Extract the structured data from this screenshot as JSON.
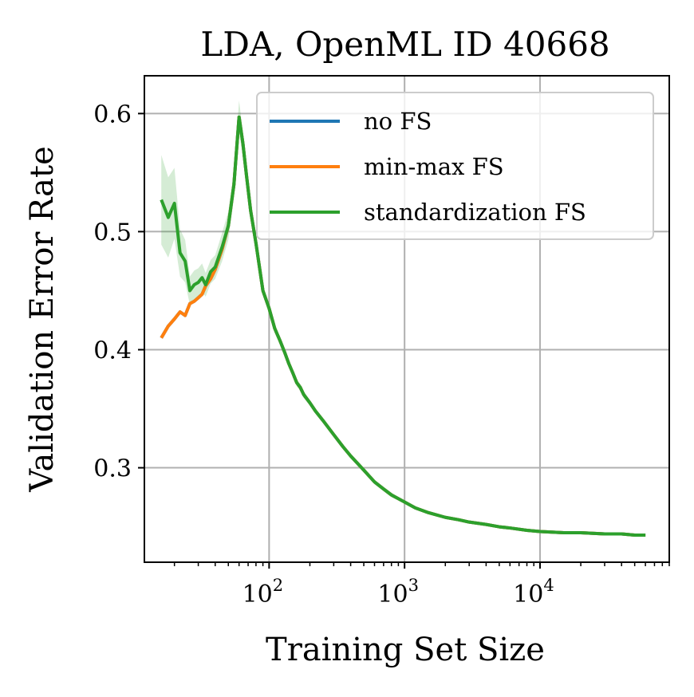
{
  "chart_data": {
    "type": "line",
    "title": "LDA, OpenML ID 40668",
    "xlabel": "Training Set Size",
    "ylabel": "Validation Error Rate",
    "xscale": "log",
    "xlim": [
      12,
      90000
    ],
    "ylim": [
      0.22,
      0.632
    ],
    "grid": true,
    "legend_position": "top-right",
    "xticks": [
      {
        "value": 100,
        "base": "10",
        "exp": "2"
      },
      {
        "value": 1000,
        "base": "10",
        "exp": "3"
      },
      {
        "value": 10000,
        "base": "10",
        "exp": "4"
      }
    ],
    "yticks": [
      {
        "value": 0.3,
        "label": "0.3"
      },
      {
        "value": 0.4,
        "label": "0.4"
      },
      {
        "value": 0.5,
        "label": "0.5"
      },
      {
        "value": 0.6,
        "label": "0.6"
      }
    ],
    "series": [
      {
        "name": "no FS",
        "color": "#1f77b4",
        "x": [
          16,
          18,
          20,
          22,
          24,
          26,
          28,
          30,
          32,
          34,
          37,
          40,
          45,
          50,
          55,
          60,
          64,
          68,
          73,
          80,
          90,
          100,
          110,
          120,
          130,
          140,
          150,
          160,
          170,
          180,
          200,
          220,
          250,
          300,
          350,
          400,
          500,
          600,
          700,
          800,
          1000,
          1200,
          1500,
          2000,
          2500,
          3000,
          4000,
          5000,
          6000,
          8000,
          10000,
          15000,
          20000,
          30000,
          40000,
          50000,
          60000
        ],
        "values": [
          0.41,
          0.42,
          0.426,
          0.432,
          0.429,
          0.439,
          0.441,
          0.444,
          0.447,
          0.454,
          0.46,
          0.468,
          0.485,
          0.505,
          0.54,
          0.597,
          0.575,
          0.548,
          0.518,
          0.49,
          0.45,
          0.435,
          0.418,
          0.408,
          0.398,
          0.388,
          0.38,
          0.372,
          0.368,
          0.362,
          0.355,
          0.348,
          0.34,
          0.328,
          0.318,
          0.31,
          0.298,
          0.288,
          0.282,
          0.277,
          0.271,
          0.266,
          0.262,
          0.258,
          0.256,
          0.254,
          0.252,
          0.25,
          0.249,
          0.247,
          0.246,
          0.245,
          0.245,
          0.244,
          0.244,
          0.243,
          0.243
        ]
      },
      {
        "name": "min-max FS",
        "color": "#ff7f0e",
        "x": [
          16,
          18,
          20,
          22,
          24,
          26,
          28,
          30,
          32,
          34,
          37,
          40,
          45,
          50,
          55,
          60,
          64,
          68,
          73,
          80,
          90,
          100,
          110,
          120,
          130,
          140,
          150,
          160,
          170,
          180,
          200,
          220,
          250,
          300,
          350,
          400,
          500,
          600,
          700,
          800,
          1000,
          1200,
          1500,
          2000,
          2500,
          3000,
          4000,
          5000,
          6000,
          8000,
          10000,
          15000,
          20000,
          30000,
          40000,
          50000,
          60000
        ],
        "values": [
          0.41,
          0.42,
          0.426,
          0.432,
          0.429,
          0.439,
          0.441,
          0.444,
          0.447,
          0.454,
          0.46,
          0.468,
          0.485,
          0.505,
          0.54,
          0.597,
          0.575,
          0.548,
          0.518,
          0.49,
          0.45,
          0.435,
          0.418,
          0.408,
          0.398,
          0.388,
          0.38,
          0.372,
          0.368,
          0.362,
          0.355,
          0.348,
          0.34,
          0.328,
          0.318,
          0.31,
          0.298,
          0.288,
          0.282,
          0.277,
          0.271,
          0.266,
          0.262,
          0.258,
          0.256,
          0.254,
          0.252,
          0.25,
          0.249,
          0.247,
          0.246,
          0.245,
          0.245,
          0.244,
          0.244,
          0.243,
          0.243
        ]
      },
      {
        "name": "standardization FS",
        "color": "#2ca02c",
        "x": [
          16,
          18,
          20,
          22,
          24,
          26,
          28,
          30,
          32,
          34,
          37,
          40,
          45,
          50,
          55,
          60,
          64,
          68,
          73,
          80,
          90,
          100,
          110,
          120,
          130,
          140,
          150,
          160,
          170,
          180,
          200,
          220,
          250,
          300,
          350,
          400,
          500,
          600,
          700,
          800,
          1000,
          1200,
          1500,
          2000,
          2500,
          3000,
          4000,
          5000,
          6000,
          8000,
          10000,
          15000,
          20000,
          30000,
          40000,
          50000,
          60000
        ],
        "values": [
          0.527,
          0.512,
          0.524,
          0.482,
          0.475,
          0.45,
          0.455,
          0.457,
          0.461,
          0.455,
          0.466,
          0.47,
          0.487,
          0.505,
          0.54,
          0.597,
          0.575,
          0.548,
          0.518,
          0.49,
          0.45,
          0.435,
          0.418,
          0.408,
          0.398,
          0.388,
          0.38,
          0.372,
          0.368,
          0.362,
          0.355,
          0.348,
          0.34,
          0.328,
          0.318,
          0.31,
          0.298,
          0.288,
          0.282,
          0.277,
          0.271,
          0.266,
          0.262,
          0.258,
          0.256,
          0.254,
          0.252,
          0.25,
          0.249,
          0.247,
          0.246,
          0.245,
          0.245,
          0.244,
          0.244,
          0.243,
          0.243
        ],
        "band_half_width": [
          0.038,
          0.034,
          0.03,
          0.02,
          0.018,
          0.012,
          0.012,
          0.012,
          0.012,
          0.01,
          0.01,
          0.01,
          0.012,
          0.012,
          0.012,
          0.014,
          0.01,
          0.008,
          0.006,
          0.005,
          0.004,
          0.004,
          0.004,
          0.003,
          0.003,
          0.003,
          0.003,
          0.003,
          0.003,
          0.003,
          0.002,
          0.002,
          0.002,
          0.002,
          0.002,
          0.002,
          0.002,
          0.002,
          0.002,
          0.002,
          0.001,
          0.001,
          0.001,
          0.001,
          0.001,
          0.001,
          0.001,
          0.001,
          0.001,
          0.001,
          0.001,
          0.001,
          0.001,
          0.001,
          0.001,
          0.001,
          0.001
        ]
      }
    ]
  }
}
